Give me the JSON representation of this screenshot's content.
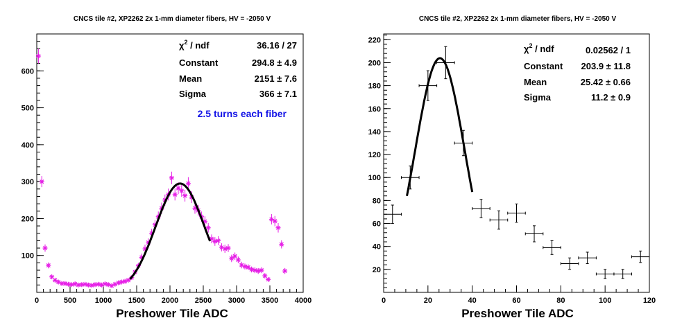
{
  "chart_data": [
    {
      "type": "scatter",
      "title": "CNCS tile #2, XP2262 2x 1-mm diameter fibers, HV = -2050 V",
      "xlabel": "Preshower Tile ADC",
      "ylabel": "",
      "xlim": [
        0,
        4000
      ],
      "ylim": [
        0,
        700
      ],
      "xticks": [
        "0",
        "500",
        "1000",
        "1500",
        "2000",
        "2500",
        "3000",
        "3500",
        "4000"
      ],
      "yticks": [
        "100",
        "200",
        "300",
        "400",
        "500",
        "600"
      ],
      "marker_color": "#e61ee6",
      "fit_color": "#000000",
      "series": [
        {
          "points": [
            {
              "x": 25,
              "y": 640,
              "e": 20
            },
            {
              "x": 75,
              "y": 300,
              "e": 15
            },
            {
              "x": 125,
              "y": 120,
              "e": 10
            },
            {
              "x": 175,
              "y": 73,
              "e": 8
            },
            {
              "x": 225,
              "y": 42,
              "e": 6
            },
            {
              "x": 275,
              "y": 33,
              "e": 6
            },
            {
              "x": 325,
              "y": 28,
              "e": 5
            },
            {
              "x": 375,
              "y": 24,
              "e": 5
            },
            {
              "x": 425,
              "y": 24,
              "e": 5
            },
            {
              "x": 475,
              "y": 22,
              "e": 5
            },
            {
              "x": 525,
              "y": 21,
              "e": 5
            },
            {
              "x": 575,
              "y": 23,
              "e": 5
            },
            {
              "x": 625,
              "y": 20,
              "e": 5
            },
            {
              "x": 675,
              "y": 21,
              "e": 5
            },
            {
              "x": 725,
              "y": 22,
              "e": 5
            },
            {
              "x": 775,
              "y": 20,
              "e": 5
            },
            {
              "x": 825,
              "y": 19,
              "e": 5
            },
            {
              "x": 875,
              "y": 21,
              "e": 5
            },
            {
              "x": 925,
              "y": 22,
              "e": 5
            },
            {
              "x": 975,
              "y": 20,
              "e": 5
            },
            {
              "x": 1025,
              "y": 23,
              "e": 5
            },
            {
              "x": 1075,
              "y": 21,
              "e": 5
            },
            {
              "x": 1125,
              "y": 18,
              "e": 5
            },
            {
              "x": 1175,
              "y": 22,
              "e": 5
            },
            {
              "x": 1225,
              "y": 26,
              "e": 5
            },
            {
              "x": 1275,
              "y": 28,
              "e": 5
            },
            {
              "x": 1325,
              "y": 30,
              "e": 6
            },
            {
              "x": 1375,
              "y": 33,
              "e": 6
            },
            {
              "x": 1425,
              "y": 40,
              "e": 6
            },
            {
              "x": 1475,
              "y": 55,
              "e": 7
            },
            {
              "x": 1525,
              "y": 72,
              "e": 8
            },
            {
              "x": 1575,
              "y": 95,
              "e": 10
            },
            {
              "x": 1625,
              "y": 118,
              "e": 11
            },
            {
              "x": 1675,
              "y": 135,
              "e": 11
            },
            {
              "x": 1725,
              "y": 160,
              "e": 12
            },
            {
              "x": 1775,
              "y": 183,
              "e": 13
            },
            {
              "x": 1825,
              "y": 205,
              "e": 14
            },
            {
              "x": 1875,
              "y": 228,
              "e": 15
            },
            {
              "x": 1925,
              "y": 250,
              "e": 15
            },
            {
              "x": 1975,
              "y": 265,
              "e": 16
            },
            {
              "x": 2025,
              "y": 310,
              "e": 17
            },
            {
              "x": 2075,
              "y": 265,
              "e": 16
            },
            {
              "x": 2125,
              "y": 282,
              "e": 16
            },
            {
              "x": 2175,
              "y": 275,
              "e": 16
            },
            {
              "x": 2225,
              "y": 262,
              "e": 16
            },
            {
              "x": 2275,
              "y": 295,
              "e": 17
            },
            {
              "x": 2325,
              "y": 258,
              "e": 16
            },
            {
              "x": 2375,
              "y": 228,
              "e": 15
            },
            {
              "x": 2425,
              "y": 222,
              "e": 15
            },
            {
              "x": 2475,
              "y": 205,
              "e": 14
            },
            {
              "x": 2525,
              "y": 192,
              "e": 14
            },
            {
              "x": 2575,
              "y": 175,
              "e": 13
            },
            {
              "x": 2625,
              "y": 145,
              "e": 12
            },
            {
              "x": 2675,
              "y": 138,
              "e": 12
            },
            {
              "x": 2725,
              "y": 140,
              "e": 12
            },
            {
              "x": 2775,
              "y": 122,
              "e": 11
            },
            {
              "x": 2825,
              "y": 118,
              "e": 11
            },
            {
              "x": 2875,
              "y": 120,
              "e": 11
            },
            {
              "x": 2925,
              "y": 92,
              "e": 10
            },
            {
              "x": 2975,
              "y": 98,
              "e": 10
            },
            {
              "x": 3025,
              "y": 88,
              "e": 9
            },
            {
              "x": 3075,
              "y": 74,
              "e": 9
            },
            {
              "x": 3125,
              "y": 70,
              "e": 8
            },
            {
              "x": 3175,
              "y": 68,
              "e": 8
            },
            {
              "x": 3225,
              "y": 62,
              "e": 8
            },
            {
              "x": 3275,
              "y": 60,
              "e": 8
            },
            {
              "x": 3325,
              "y": 58,
              "e": 8
            },
            {
              "x": 3375,
              "y": 60,
              "e": 8
            },
            {
              "x": 3425,
              "y": 45,
              "e": 7
            },
            {
              "x": 3475,
              "y": 35,
              "e": 6
            },
            {
              "x": 3525,
              "y": 198,
              "e": 14
            },
            {
              "x": 3575,
              "y": 193,
              "e": 14
            },
            {
              "x": 3625,
              "y": 175,
              "e": 13
            },
            {
              "x": 3675,
              "y": 130,
              "e": 11
            },
            {
              "x": 3725,
              "y": 58,
              "e": 8
            }
          ]
        }
      ],
      "fit": {
        "constant": 294.8,
        "mean": 2151,
        "sigma": 366,
        "range": [
          1400,
          2600
        ]
      },
      "stats": [
        {
          "label": "χ² / ndf",
          "value": "36.16 / 27"
        },
        {
          "label": "Constant",
          "value": "294.8 ± 4.9"
        },
        {
          "label": "Mean",
          "value": "2151 ± 7.6"
        },
        {
          "label": "Sigma",
          "value": "366 ± 7.1"
        }
      ],
      "annotation": "2.5 turns each fiber"
    },
    {
      "type": "scatter",
      "title": "CNCS tile #2, XP2262 2x 1-mm diameter fibers, HV = -2050 V",
      "xlabel": "Preshower Tile ADC",
      "ylabel": "",
      "xlim": [
        0,
        120
      ],
      "ylim": [
        0,
        225
      ],
      "xticks": [
        "0",
        "20",
        "40",
        "60",
        "80",
        "100",
        "120"
      ],
      "yticks": [
        "20",
        "40",
        "60",
        "80",
        "100",
        "120",
        "140",
        "160",
        "180",
        "200",
        "220"
      ],
      "marker_color": "#000000",
      "fit_color": "#000000",
      "series": [
        {
          "points": [
            {
              "x": 4,
              "y": 68,
              "xe": 4,
              "e": 8
            },
            {
              "x": 12,
              "y": 100,
              "xe": 4,
              "e": 10
            },
            {
              "x": 20,
              "y": 180,
              "xe": 4,
              "e": 13
            },
            {
              "x": 28,
              "y": 200,
              "xe": 4,
              "e": 14
            },
            {
              "x": 36,
              "y": 130,
              "xe": 4,
              "e": 11
            },
            {
              "x": 44,
              "y": 73,
              "xe": 4,
              "e": 8
            },
            {
              "x": 52,
              "y": 63,
              "xe": 4,
              "e": 8
            },
            {
              "x": 60,
              "y": 69,
              "xe": 4,
              "e": 8
            },
            {
              "x": 68,
              "y": 51,
              "xe": 4,
              "e": 7
            },
            {
              "x": 76,
              "y": 39,
              "xe": 4,
              "e": 6
            },
            {
              "x": 84,
              "y": 25,
              "xe": 4,
              "e": 5
            },
            {
              "x": 92,
              "y": 30,
              "xe": 4,
              "e": 5
            },
            {
              "x": 100,
              "y": 16,
              "xe": 4,
              "e": 4
            },
            {
              "x": 108,
              "y": 16,
              "xe": 4,
              "e": 4
            },
            {
              "x": 116,
              "y": 31,
              "xe": 4,
              "e": 5
            }
          ]
        }
      ],
      "fit": {
        "constant": 203.9,
        "mean": 25.42,
        "sigma": 11.2,
        "range": [
          10.5,
          40
        ]
      },
      "stats": [
        {
          "label": "χ² / ndf",
          "value": "0.02562 / 1"
        },
        {
          "label": "Constant",
          "value": "203.9 ± 11.8"
        },
        {
          "label": "Mean",
          "value": "25.42 ± 0.66"
        },
        {
          "label": "Sigma",
          "value": "11.2 ± 0.9"
        }
      ]
    }
  ]
}
